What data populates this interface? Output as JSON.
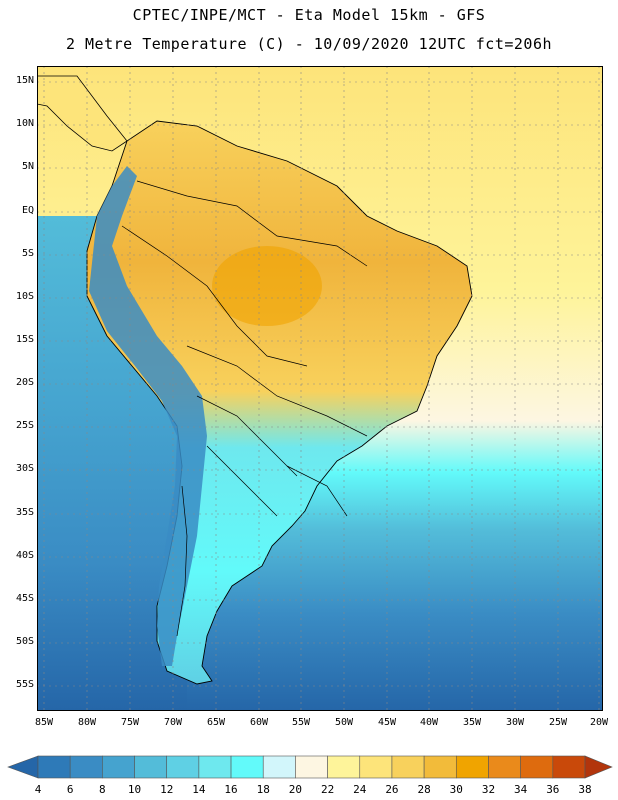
{
  "title_line1": "CPTEC/INPE/MCT -  Eta Model 15km - GFS",
  "title_line2": "2 Metre Temperature (C) - 10/09/2020 12UTC fct=206h",
  "lat_labels": [
    "15N",
    "10N",
    "5N",
    "EQ",
    "5S",
    "10S",
    "15S",
    "20S",
    "25S",
    "30S",
    "35S",
    "40S",
    "45S",
    "50S",
    "55S"
  ],
  "lon_labels": [
    "85W",
    "80W",
    "75W",
    "70W",
    "65W",
    "60W",
    "55W",
    "50W",
    "45W",
    "40W",
    "35W",
    "30W",
    "25W",
    "20W"
  ],
  "colorbar": {
    "levels": [
      4,
      6,
      8,
      10,
      12,
      14,
      16,
      18,
      20,
      22,
      24,
      26,
      28,
      30,
      32,
      34,
      36,
      38
    ],
    "colors": [
      "#2566a8",
      "#2e7ab8",
      "#3a8cc4",
      "#45a3cf",
      "#53bcd9",
      "#5fd0e4",
      "#6ee8ee",
      "#62fafa",
      "#d2f6fb",
      "#fdf6e2",
      "#fef49a",
      "#fde47a",
      "#f8d15c",
      "#f2bb3a",
      "#f0a400",
      "#ea8a1b",
      "#de6b0e",
      "#c9490a",
      "#b2350c"
    ]
  },
  "colors": {
    "ocean_cold": "#2a6bad",
    "ocean_mid": "#45a3cf",
    "ocean_warm": "#6ee8ee",
    "land_hot": "#f0b43c",
    "land_warm": "#f8d15c",
    "andes_cold": "#3a8cc4",
    "border": "#000000",
    "grid": "#888888"
  }
}
